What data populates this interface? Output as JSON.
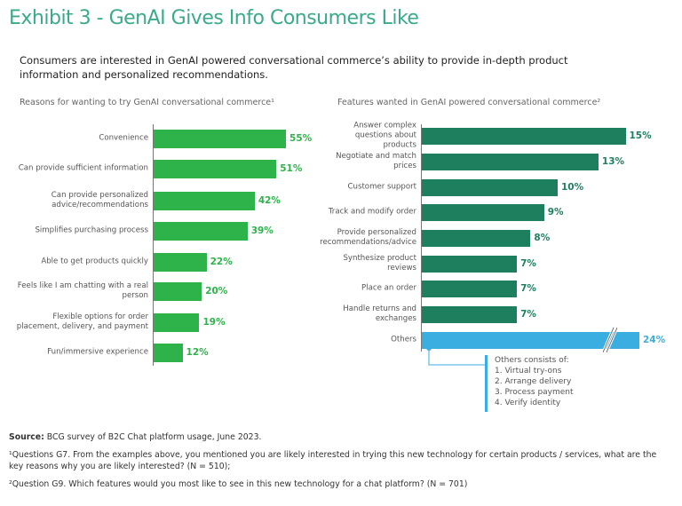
{
  "title": "Exhibit 3 - GenAI Gives Info Consumers Like",
  "subtitle": "Consumers are interested in GenAI powered conversational commerce’s ability to provide in-depth product information and personalized recommendations.",
  "chart_data": [
    {
      "type": "bar",
      "orientation": "horizontal",
      "title": "Reasons for wanting to try GenAI conversational commerce¹",
      "color": "#2db34a",
      "categories": [
        "Convenience",
        "Can provide sufficient information",
        "Can provide personalized advice/recommendations",
        "Simplifies purchasing process",
        "Able to get products quickly",
        "Feels like I am chatting with a real person",
        "Flexible options for order placement, delivery, and payment",
        "Fun/immersive experience"
      ],
      "values": [
        55,
        51,
        42,
        39,
        22,
        20,
        19,
        12
      ],
      "value_labels": [
        "55%",
        "51%",
        "42%",
        "39%",
        "22%",
        "20%",
        "19%",
        "12%"
      ]
    },
    {
      "type": "bar",
      "orientation": "horizontal",
      "title": "Features wanted in GenAI powered conversational commerce²",
      "color": "#1e7f5e",
      "highlight_color": "#3aaee0",
      "categories": [
        "Answer complex questions about products",
        "Negotiate and match prices",
        "Customer support",
        "Track and modify order",
        "Provide personalized recommendations/advice",
        "Synthesize product reviews",
        "Place an order",
        "Handle returns and exchanges",
        "Others"
      ],
      "values": [
        15,
        13,
        10,
        9,
        8,
        7,
        7,
        7,
        24
      ],
      "value_labels": [
        "15%",
        "13%",
        "10%",
        "9%",
        "8%",
        "7%",
        "7%",
        "7%",
        "24%"
      ],
      "axis_break_on": "Others",
      "annotation": {
        "heading": "Others consists of:",
        "items": [
          "1. Virtual try-ons",
          "2. Arrange delivery",
          "3. Process payment",
          "4. Verify identity"
        ]
      }
    }
  ],
  "footer": {
    "source_label": "Source:",
    "source": " BCG survey of B2C Chat platform usage, June 2023.",
    "note1": "¹Questions G7. From the examples above, you mentioned you are likely interested in trying this new technology for certain products / services, what are the key reasons why you are likely interested? (N = 510);",
    "note2": "²Question G9. Which features would you most like to see in this new technology for a chat platform? (N = 701)"
  }
}
